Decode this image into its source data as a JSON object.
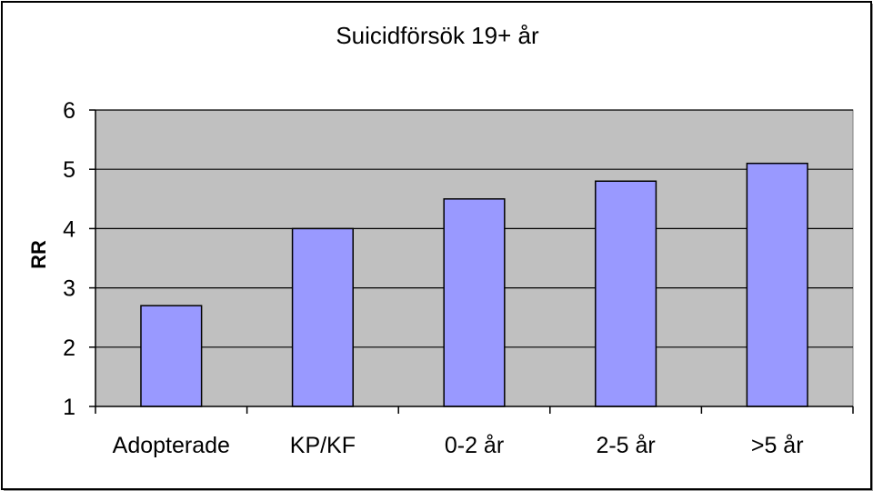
{
  "chart_data": {
    "type": "bar",
    "title": "Suicidförsök 19+ år",
    "xlabel": "",
    "ylabel": "RR",
    "categories": [
      "Adopterade",
      "KP/KF",
      "0-2 år",
      "2-5 år",
      ">5 år"
    ],
    "values": [
      2.7,
      4.0,
      4.5,
      4.8,
      5.1
    ],
    "ylim": [
      1,
      6
    ],
    "yticks": [
      1,
      2,
      3,
      4,
      5,
      6
    ],
    "grid": true,
    "legend": "none",
    "colors": {
      "bar_fill": "#9999ff",
      "plot_background": "#c0c0c0",
      "gridline": "#000000"
    }
  }
}
